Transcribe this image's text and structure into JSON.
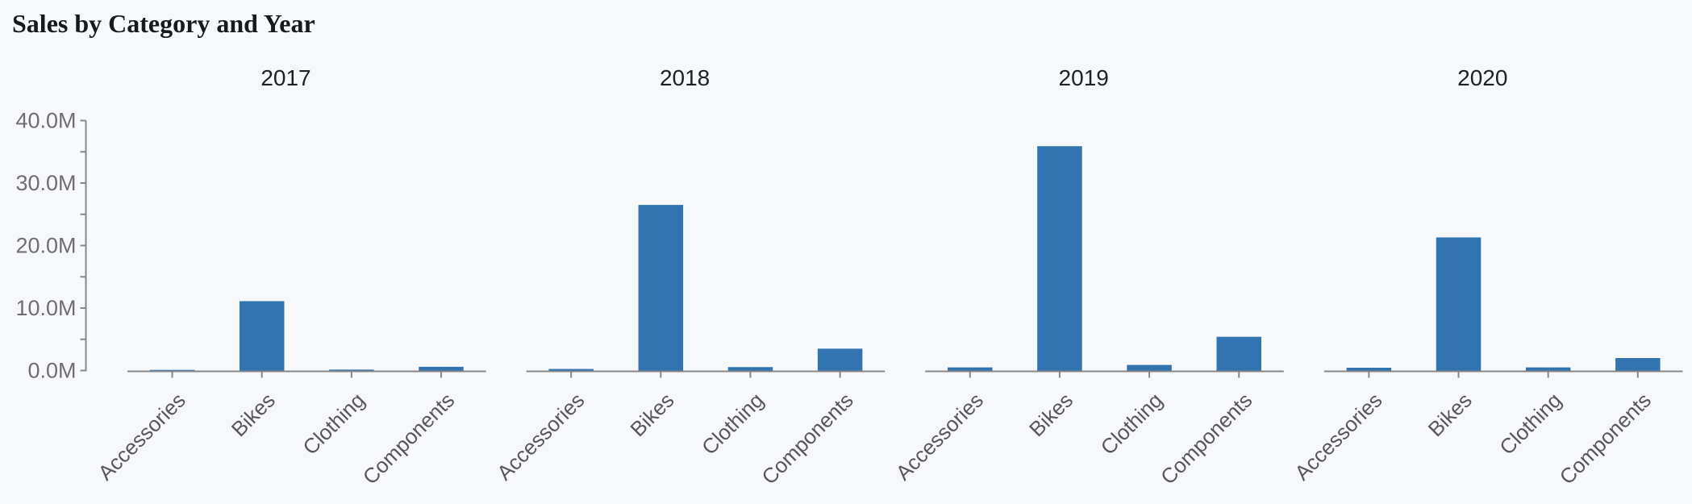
{
  "page": {
    "title": "Sales by Category and Year"
  },
  "chart_data": {
    "type": "bar",
    "title": "Sales by Category and Year",
    "layout": "faceted-columns",
    "xlabel": "",
    "ylabel": "",
    "grid": false,
    "legend": false,
    "value_unit": "M",
    "categories": [
      "Accessories",
      "Bikes",
      "Clothing",
      "Components"
    ],
    "facets": [
      {
        "label": "2017",
        "values": [
          0.1,
          11.1,
          0.15,
          0.6
        ]
      },
      {
        "label": "2018",
        "values": [
          0.25,
          26.5,
          0.55,
          3.5
        ]
      },
      {
        "label": "2019",
        "values": [
          0.5,
          35.9,
          0.9,
          5.4
        ]
      },
      {
        "label": "2020",
        "values": [
          0.45,
          21.3,
          0.5,
          2.0
        ]
      }
    ],
    "y_axis": {
      "min": 0,
      "max": 40,
      "major_ticks": [
        {
          "value": 0,
          "label": "0.0M"
        },
        {
          "value": 10,
          "label": "10.0M"
        },
        {
          "value": 20,
          "label": "20.0M"
        },
        {
          "value": 30,
          "label": "30.0M"
        },
        {
          "value": 40,
          "label": "40.0M"
        }
      ],
      "minor_ticks": [
        5,
        15,
        25,
        35
      ]
    },
    "colors": {
      "background": "#f6f8fa",
      "bar": "#3274b1",
      "axis": "#85878a",
      "y_tick_label": "#6e6e73",
      "category_label": "#57575c",
      "facet_title": "#202126",
      "title": "#17191e"
    }
  }
}
